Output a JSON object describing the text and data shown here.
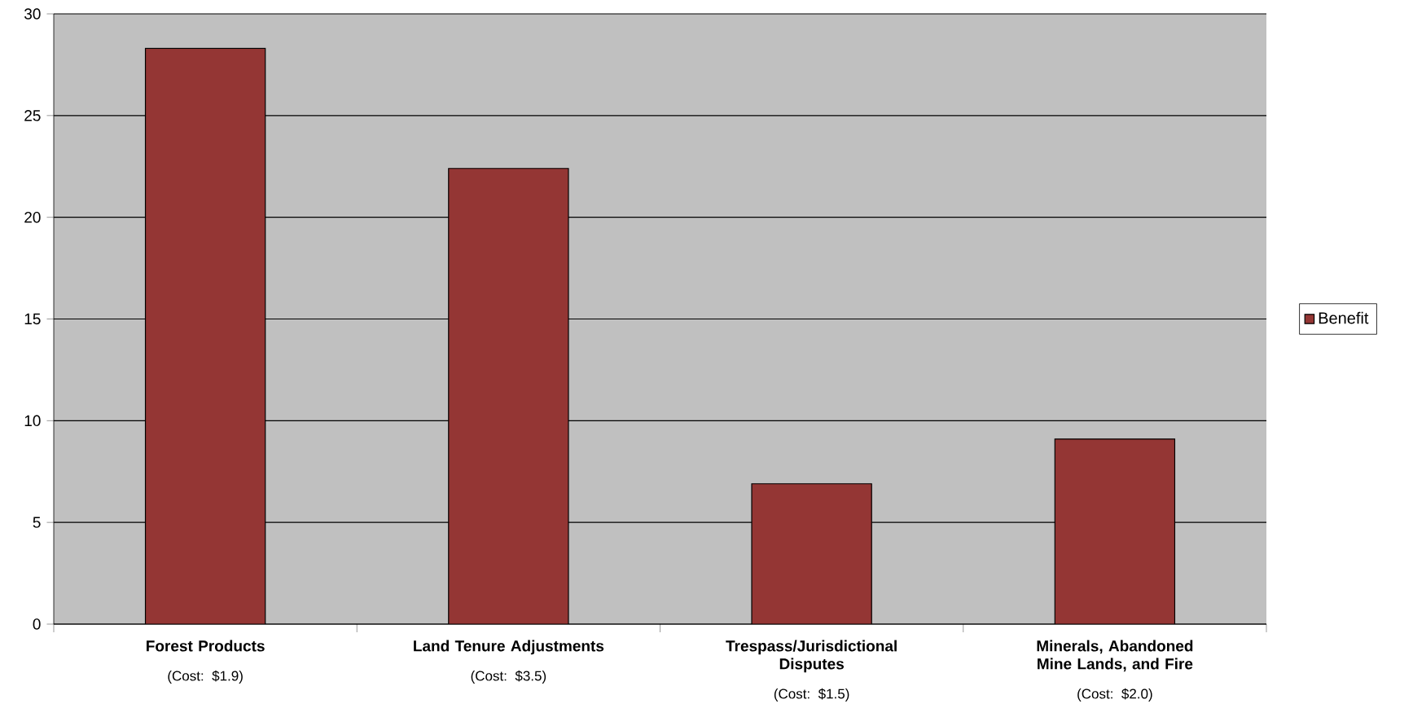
{
  "chart_data": {
    "type": "bar",
    "categories": [
      "Forest Products",
      "Land Tenure Adjustments",
      "Trespass/Jurisdictional Disputes",
      "Minerals, Abandoned Mine Lands, and Fire"
    ],
    "series": [
      {
        "name": "Benefit",
        "color": "#943634",
        "values": [
          28.3,
          22.4,
          6.9,
          9.1
        ]
      }
    ],
    "ylim": [
      0,
      30
    ],
    "yticks": [
      0,
      5,
      10,
      15,
      20,
      25,
      30
    ],
    "grid": "y",
    "legend": "right",
    "annotations": [
      "(Cost: $1.9)",
      "(Cost: $3.5)",
      "(Cost: $1.5)",
      "(Cost: $2.0)"
    ]
  }
}
